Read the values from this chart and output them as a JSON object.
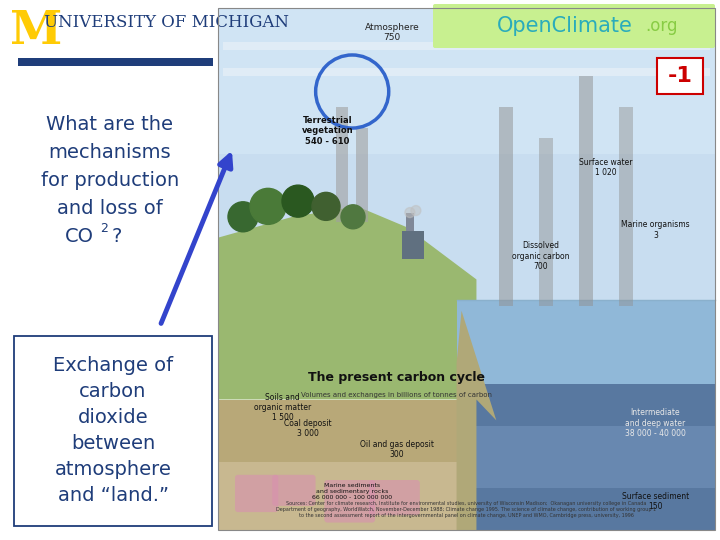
{
  "bg_color": "#ffffff",
  "header_bar_color": "#1f3d7a",
  "univ_m_color": "#FFCB05",
  "univ_text_color": "#1f3d7a",
  "univ_text": "NIVERSITY OF MICHIGAN",
  "openclimate_text": "OpenClimate",
  "openclimate_org": ".org",
  "openclimate_color": "#2aacbb",
  "openclimate_org_color": "#88cc44",
  "openclimate_bg": "#c8f090",
  "slide_number": "-1",
  "slide_number_color": "#cc0000",
  "question_line1": "What are the",
  "question_line2": "mechanisms",
  "question_line3": "for production",
  "question_line4": "and loss of",
  "question_line5": "CO",
  "question_line5b": "2",
  "question_line5c": "?",
  "question_color": "#1f3d7a",
  "box_lines": [
    "Exchange of",
    "carbon",
    "dioxide",
    "between",
    "atmosphere",
    "and “land.”"
  ],
  "box_text_color": "#1f3d7a",
  "box_border_color": "#1f3d7a",
  "atmo_color": "#c8ddf0",
  "sky_color": "#b0cce8",
  "land_color": "#b8a878",
  "subland_color": "#c8b888",
  "deep_color": "#7090b8",
  "ocean_surface_color": "#90b8d8",
  "ocean_deep_color": "#5878a0",
  "sediment_color": "#c0a870",
  "arrow_color": "#3344cc"
}
